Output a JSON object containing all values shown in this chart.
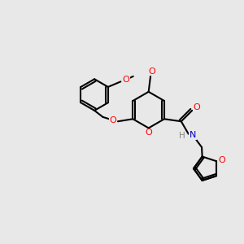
{
  "bg_color": "#e8e8e8",
  "bond_color": "#000000",
  "oxygen_color": "#ff0000",
  "nitrogen_color": "#0000cd",
  "line_width": 1.5,
  "figsize": [
    3.0,
    3.0
  ],
  "dpi": 100,
  "xlim": [
    0,
    10
  ],
  "ylim": [
    0,
    10
  ]
}
